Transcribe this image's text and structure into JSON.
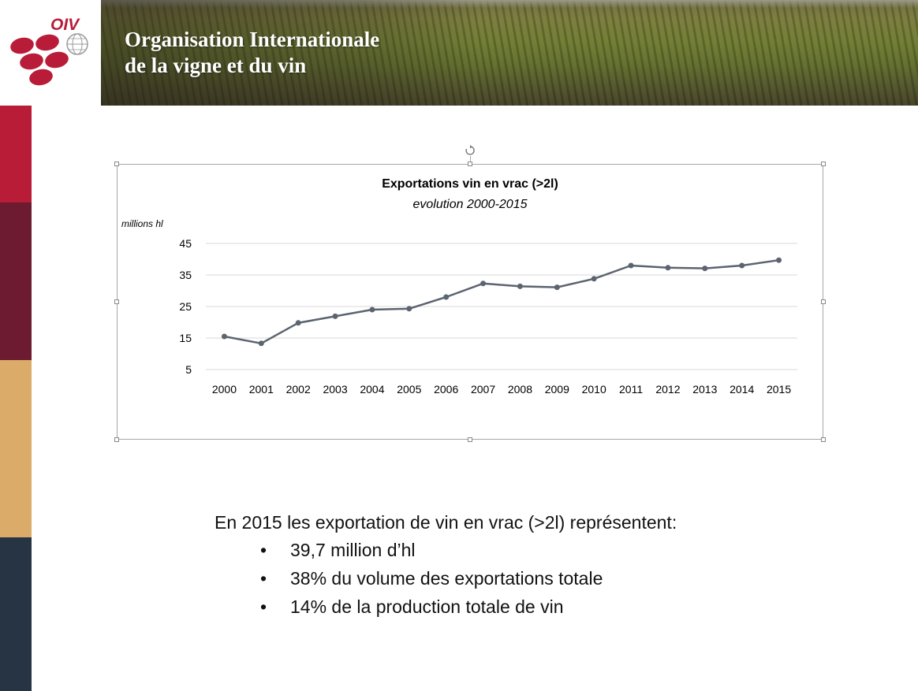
{
  "header": {
    "logo_text": "OIV",
    "title_line1": "Organisation Internationale",
    "title_line2": "de la vigne et du vin"
  },
  "colors": {
    "strip": [
      "#b81c36",
      "#6c1b31",
      "#dbab69",
      "#263444"
    ],
    "line": "#5b6470",
    "grid": "#d9d9d9",
    "logo_red": "#b81c38"
  },
  "chart_data": {
    "type": "line",
    "title": "Exportations vin en vrac (>2l)",
    "subtitle": "evolution 2000-2015",
    "ylabel": "millions hl",
    "xlabel": "",
    "categories": [
      "2000",
      "2001",
      "2002",
      "2003",
      "2004",
      "2005",
      "2006",
      "2007",
      "2008",
      "2009",
      "2010",
      "2011",
      "2012",
      "2013",
      "2014",
      "2015"
    ],
    "values": [
      15.5,
      13.3,
      19.8,
      21.9,
      24.0,
      24.3,
      28.0,
      32.3,
      31.4,
      31.1,
      33.8,
      38.0,
      37.3,
      37.1,
      38.0,
      39.7
    ],
    "yticks": [
      5,
      15,
      25,
      35,
      45
    ],
    "ylim": [
      5,
      45
    ],
    "grid": true,
    "legend": "none"
  },
  "summary": {
    "lead": "En 2015 les exportation de vin en vrac (>2l) représentent:",
    "bullet_char": "•",
    "bullets": [
      "39,7 million d’hl",
      "38% du volume des exportations totale",
      "14% de la production totale de vin"
    ]
  }
}
